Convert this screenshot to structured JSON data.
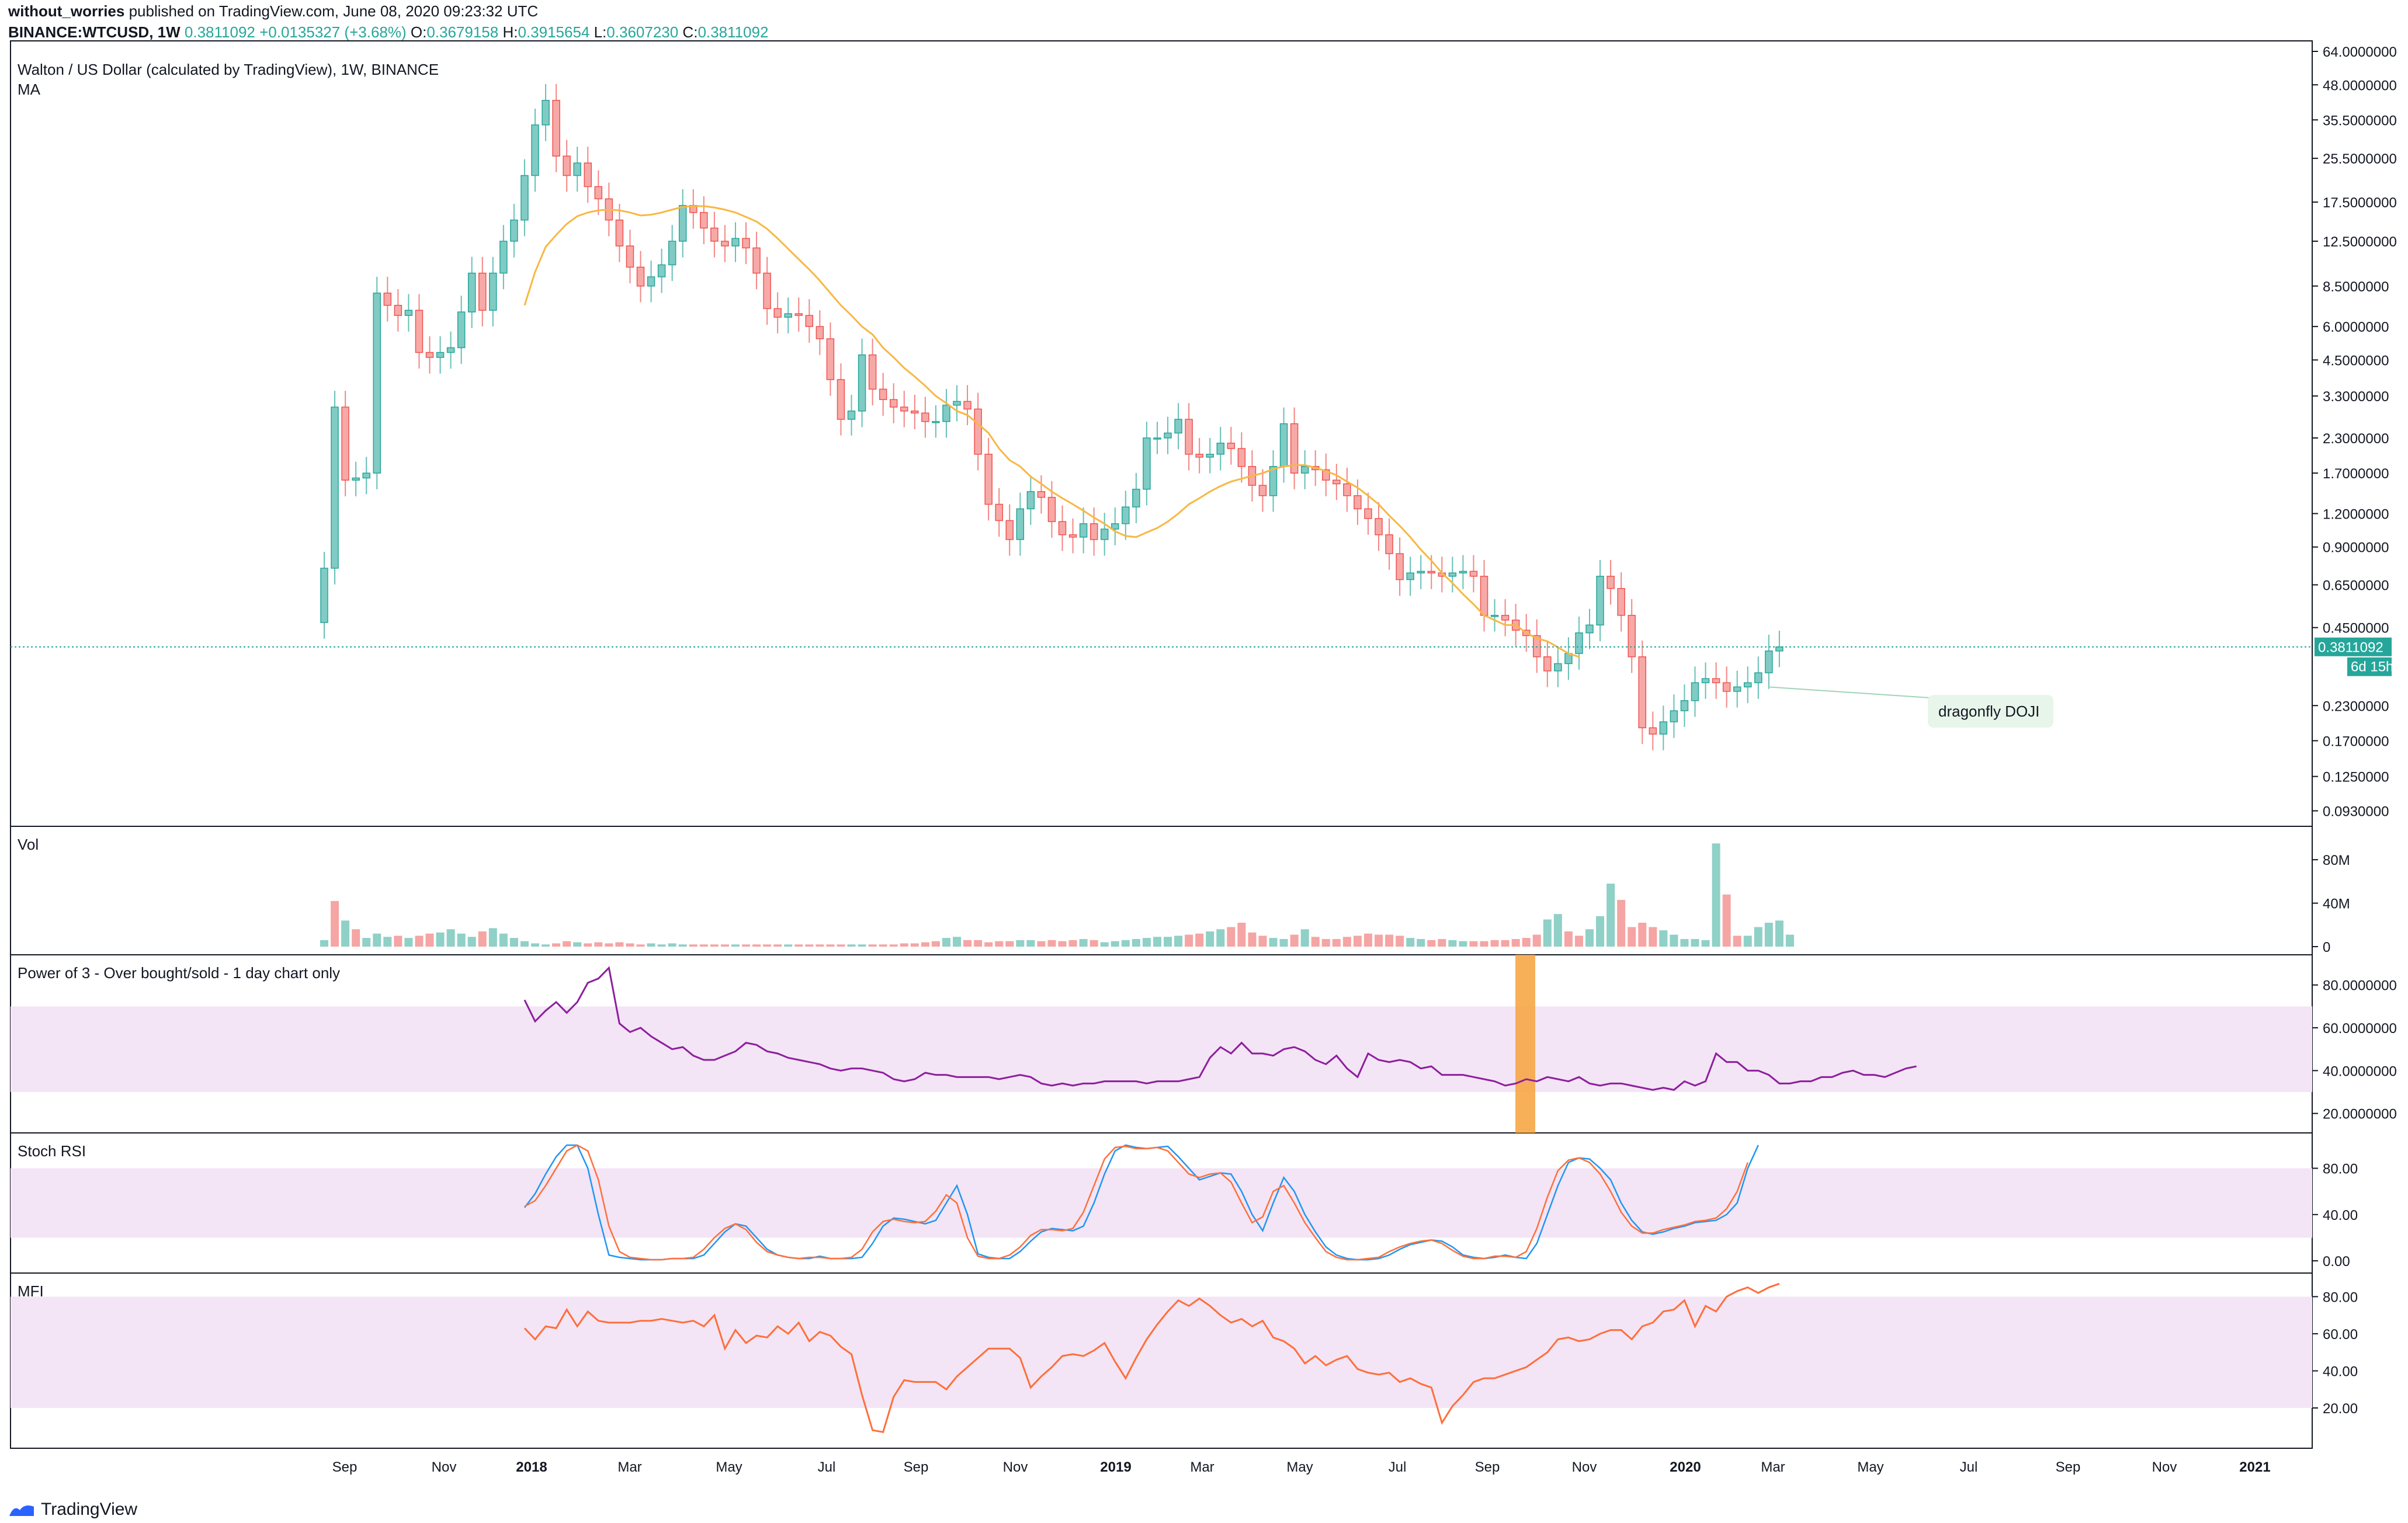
{
  "header": {
    "publisher": "without_worries",
    "published_text": "published on TradingView.com, June 08, 2020 09:23:32 UTC",
    "symbol": "BINANCE:WTCUSD, 1W",
    "last": "0.3811092",
    "change": "+0.0135327 (+3.68%)",
    "ohlc": {
      "O": "0.3679158",
      "H": "0.3915654",
      "L": "0.3607230",
      "C": "0.3811092"
    }
  },
  "brand": "TradingView",
  "colors": {
    "up": "#26a69a",
    "down": "#ef5350",
    "ma": "#f7b844",
    "pow3": "#8e1e9e",
    "stoch_k": "#2196f3",
    "stoch_d": "#ff6f3c",
    "mfi": "#ff6f3c",
    "band": "#f3e5f5",
    "highlight": "#f7a23b"
  },
  "chart_data": [
    {
      "type": "candlestick",
      "title": "Walton / US Dollar (calculated by TradingView), 1W, BINANCE",
      "indicator": "MA",
      "scale": "log",
      "y_ticks": [
        "64.0000000",
        "48.0000000",
        "35.5000000",
        "25.5000000",
        "17.5000000",
        "12.5000000",
        "8.5000000",
        "6.0000000",
        "4.5000000",
        "3.3000000",
        "2.3000000",
        "1.7000000",
        "1.2000000",
        "0.9000000",
        "0.6500000",
        "0.4500000",
        "0.2300000",
        "0.1700000",
        "0.1250000",
        "0.0930000"
      ],
      "last_price_label": "0.3811092",
      "countdown_label": "6d 15h",
      "annotation": "dragonfly DOJI",
      "x_labels": [
        "Sep",
        "Nov",
        "2018",
        "Mar",
        "May",
        "Jul",
        "Sep",
        "Nov",
        "2019",
        "Mar",
        "May",
        "Jul",
        "Sep",
        "Nov",
        "2020",
        "Mar",
        "May",
        "Jul",
        "Sep",
        "Nov",
        "2021"
      ],
      "close": [
        0.75,
        3.0,
        1.6,
        1.63,
        1.7,
        8.0,
        7.2,
        6.6,
        6.9,
        4.8,
        4.6,
        4.8,
        5.0,
        6.8,
        9.5,
        6.9,
        9.5,
        12.5,
        15.0,
        22.0,
        34.0,
        42.0,
        26.0,
        22.0,
        24.5,
        20.0,
        18.0,
        15.0,
        12.0,
        10.0,
        8.5,
        9.2,
        10.2,
        12.5,
        17.0,
        16.0,
        14.0,
        12.5,
        12.0,
        12.8,
        11.8,
        9.5,
        7.0,
        6.5,
        6.7,
        6.6,
        6.0,
        5.4,
        3.8,
        2.7,
        2.9,
        4.7,
        3.5,
        3.2,
        3.0,
        2.9,
        2.85,
        2.65,
        2.65,
        3.05,
        3.15,
        2.95,
        2.0,
        1.3,
        1.13,
        0.96,
        1.25,
        1.45,
        1.38,
        1.12,
        1.0,
        0.98,
        1.1,
        0.96,
        1.05,
        1.1,
        1.27,
        1.48,
        2.3,
        2.3,
        2.4,
        2.7,
        2.0,
        1.95,
        2.0,
        2.2,
        2.1,
        1.8,
        1.53,
        1.4,
        1.8,
        2.6,
        1.7,
        1.8,
        1.75,
        1.6,
        1.55,
        1.4,
        1.25,
        1.15,
        1.0,
        0.85,
        0.68,
        0.72,
        0.73,
        0.72,
        0.7,
        0.72,
        0.73,
        0.7,
        0.5,
        0.5,
        0.48,
        0.44,
        0.42,
        0.35,
        0.31,
        0.33,
        0.36,
        0.43,
        0.46,
        0.7,
        0.63,
        0.5,
        0.35,
        0.19,
        0.18,
        0.2,
        0.22,
        0.24,
        0.28,
        0.29,
        0.28,
        0.26,
        0.27,
        0.28,
        0.305,
        0.368,
        0.3811092
      ],
      "ma_label": "MA",
      "ma": [
        0.0,
        0.0,
        0.0,
        0.0,
        0.0,
        0.0,
        0.0,
        0.0,
        0.0,
        0.0,
        0.0,
        0.0,
        0.0,
        0.0,
        0.0,
        0.0,
        0.0,
        0.0,
        0.0,
        7.2,
        9.6,
        11.9,
        13.2,
        14.5,
        15.5,
        16.0,
        16.3,
        16.4,
        16.3,
        16.0,
        15.6,
        15.7,
        16.0,
        16.4,
        16.8,
        16.9,
        16.9,
        16.7,
        16.4,
        16.0,
        15.4,
        14.8,
        13.9,
        12.8,
        11.7,
        10.7,
        9.8,
        8.9,
        8.0,
        7.2,
        6.6,
        6.0,
        5.6,
        5.0,
        4.6,
        4.2,
        3.9,
        3.6,
        3.3,
        3.1,
        2.9,
        2.8,
        2.6,
        2.4,
        2.1,
        1.9,
        1.8,
        1.65,
        1.55,
        1.45,
        1.37,
        1.3,
        1.23,
        1.16,
        1.1,
        1.03,
        0.99,
        0.98,
        1.02,
        1.06,
        1.12,
        1.2,
        1.3,
        1.37,
        1.45,
        1.52,
        1.58,
        1.62,
        1.66,
        1.7,
        1.76,
        1.8,
        1.82,
        1.82,
        1.78,
        1.73,
        1.67,
        1.58,
        1.5,
        1.4,
        1.3,
        1.18,
        1.08,
        0.98,
        0.88,
        0.8,
        0.72,
        0.66,
        0.6,
        0.55,
        0.5,
        0.48,
        0.46,
        0.46,
        0.43,
        0.41,
        0.4,
        0.38,
        0.36,
        0.35
      ],
      "vol_label": "Vol",
      "vol_ticks": [
        "80M",
        "40M",
        "0"
      ],
      "volume_m": [
        6,
        42,
        24,
        16,
        8,
        12,
        9,
        10,
        8,
        10,
        12,
        13,
        16,
        12,
        9,
        14,
        17,
        12,
        8,
        5,
        3,
        2,
        3,
        5,
        4,
        3,
        4,
        3,
        4,
        3,
        2,
        3,
        2,
        3,
        2,
        2,
        2,
        2,
        2,
        2,
        2,
        2,
        2,
        2,
        2,
        2,
        2,
        2,
        2,
        2,
        2,
        2,
        2,
        2,
        2,
        3,
        3,
        4,
        5,
        8,
        9,
        6,
        6,
        4,
        5,
        5,
        6,
        6,
        5,
        6,
        5,
        6,
        7,
        6,
        4,
        5,
        6,
        7,
        8,
        9,
        9,
        10,
        11,
        12,
        14,
        16,
        18,
        22,
        13,
        10,
        8,
        7,
        11,
        16,
        9,
        7,
        7,
        9,
        10,
        12,
        11,
        11,
        10,
        8,
        7,
        6,
        7,
        6,
        5,
        5,
        5,
        6,
        6,
        7,
        8,
        11,
        25,
        30,
        14,
        10,
        16,
        28,
        58,
        43,
        18,
        22,
        18,
        15,
        11,
        7,
        7,
        6,
        95,
        48,
        10,
        10,
        18,
        22,
        24,
        11
      ],
      "volume_up": [
        1,
        0,
        1,
        0,
        1,
        1,
        1,
        0,
        1,
        0,
        0,
        1,
        1,
        1,
        1,
        0,
        1,
        1,
        1,
        1,
        1,
        1,
        0,
        0,
        1,
        0,
        0,
        0,
        0,
        0,
        0,
        1,
        1,
        1,
        1,
        0,
        0,
        0,
        0,
        1,
        0,
        0,
        0,
        0,
        1,
        0,
        0,
        0,
        0,
        0,
        1,
        1,
        0,
        0,
        0,
        0,
        0,
        0,
        0,
        1,
        1,
        0,
        0,
        0,
        0,
        0,
        1,
        1,
        0,
        0,
        0,
        0,
        1,
        0,
        1,
        1,
        1,
        1,
        1,
        1,
        1,
        1,
        0,
        0,
        1,
        1,
        0,
        0,
        0,
        0,
        1,
        1,
        0,
        1,
        0,
        0,
        0,
        0,
        0,
        0,
        0,
        0,
        0,
        1,
        1,
        0,
        0,
        1,
        1,
        0,
        0,
        0,
        0,
        0,
        0,
        0,
        1,
        1,
        0,
        0,
        1,
        1,
        1,
        0,
        0,
        0,
        0,
        1,
        1,
        1,
        1,
        1,
        1,
        0,
        0,
        1,
        1,
        1,
        1,
        1
      ]
    },
    {
      "type": "line",
      "title": "Power of 3 - Over bought/sold - 1 day chart only",
      "y_ticks": [
        "80.0000000",
        "60.0000000",
        "40.0000000",
        "20.0000000"
      ],
      "band": [
        30,
        70
      ],
      "ylim": [
        15,
        90
      ],
      "start_index": 19,
      "values": [
        73,
        63,
        68,
        72,
        67,
        72,
        81,
        83,
        88,
        62,
        58,
        60,
        56,
        53,
        50,
        51,
        47,
        45,
        45,
        47,
        49,
        53,
        52,
        49,
        48,
        46,
        45,
        44,
        43,
        41,
        40,
        41,
        41,
        40,
        39,
        36,
        35,
        36,
        39,
        38,
        38,
        37,
        37,
        37,
        37,
        36,
        37,
        38,
        37,
        34,
        33,
        34,
        33,
        34,
        34,
        35,
        35,
        35,
        35,
        34,
        35,
        35,
        35,
        36,
        37,
        46,
        51,
        48,
        53,
        48,
        48,
        47,
        50,
        51,
        49,
        45,
        43,
        47,
        41,
        37,
        48,
        45,
        44,
        45,
        44,
        41,
        42,
        38,
        38,
        38,
        37,
        36,
        35,
        33,
        34,
        36,
        35,
        37,
        36,
        35,
        37,
        34,
        33,
        34,
        34,
        33,
        32,
        31,
        32,
        31,
        35,
        33,
        35,
        48,
        44,
        44,
        40,
        40,
        38,
        34,
        34,
        35,
        35,
        37,
        37,
        39,
        40,
        38,
        38,
        37,
        39,
        41,
        42
      ]
    },
    {
      "type": "line",
      "title": "Stoch RSI",
      "y_ticks": [
        "80.00",
        "40.00",
        "0.00"
      ],
      "band": [
        20,
        80
      ],
      "ylim": [
        -3,
        103
      ],
      "start_index": 19,
      "series": [
        {
          "values": [
            46,
            58,
            75,
            90,
            100,
            100,
            80,
            40,
            5,
            3,
            2,
            1,
            1,
            1,
            2,
            2,
            2,
            5,
            15,
            25,
            32,
            30,
            20,
            10,
            5,
            3,
            2,
            2,
            4,
            2,
            2,
            2,
            3,
            15,
            30,
            37,
            36,
            34,
            32,
            35,
            50,
            65,
            40,
            6,
            3,
            2,
            2,
            8,
            17,
            25,
            28,
            27,
            26,
            30,
            50,
            75,
            95,
            100,
            98,
            97,
            98,
            99,
            90,
            80,
            70,
            73,
            76,
            75,
            60,
            40,
            26,
            50,
            72,
            60,
            40,
            25,
            12,
            5,
            2,
            1,
            1,
            2,
            5,
            10,
            14,
            16,
            18,
            17,
            12,
            5,
            3,
            2,
            3,
            5,
            3,
            2,
            15,
            40,
            65,
            85,
            89,
            88,
            80,
            70,
            50,
            35,
            25,
            23,
            25,
            28,
            30,
            33,
            34,
            35,
            40,
            50,
            80,
            100
          ]
        },
        {
          "values": [
            47,
            52,
            65,
            80,
            95,
            100,
            95,
            70,
            30,
            8,
            3,
            2,
            1,
            1,
            2,
            2,
            3,
            10,
            20,
            28,
            32,
            27,
            16,
            8,
            5,
            3,
            2,
            3,
            3,
            2,
            2,
            3,
            10,
            25,
            34,
            36,
            34,
            33,
            34,
            43,
            57,
            50,
            20,
            4,
            2,
            2,
            5,
            12,
            22,
            27,
            27,
            26,
            28,
            42,
            65,
            88,
            98,
            99,
            97,
            97,
            98,
            95,
            85,
            75,
            72,
            75,
            76,
            68,
            50,
            33,
            38,
            60,
            65,
            50,
            33,
            20,
            8,
            3,
            1,
            1,
            2,
            3,
            8,
            12,
            15,
            17,
            18,
            15,
            9,
            4,
            2,
            2,
            4,
            4,
            3,
            8,
            28,
            55,
            78,
            87,
            89,
            85,
            75,
            60,
            42,
            30,
            24,
            24,
            27,
            29,
            31,
            34,
            35,
            37,
            45,
            60,
            85
          ]
        }
      ]
    },
    {
      "type": "line",
      "title": "MFI",
      "y_ticks": [
        "80.00",
        "60.00",
        "40.00",
        "20.00"
      ],
      "band": [
        20,
        80
      ],
      "ylim": [
        3,
        88
      ],
      "start_index": 19,
      "values": [
        63,
        57,
        64,
        63,
        73,
        64,
        72,
        67,
        66,
        66,
        66,
        67,
        67,
        68,
        67,
        66,
        67,
        64,
        70,
        52,
        62,
        55,
        59,
        58,
        64,
        60,
        66,
        56,
        61,
        59,
        53,
        49,
        27,
        8,
        7,
        26,
        35,
        34,
        34,
        34,
        30,
        37,
        42,
        47,
        52,
        52,
        52,
        47,
        31,
        37,
        42,
        48,
        49,
        48,
        51,
        55,
        45,
        36,
        47,
        57,
        65,
        72,
        78,
        75,
        79,
        75,
        70,
        66,
        68,
        64,
        67,
        58,
        56,
        52,
        44,
        48,
        43,
        46,
        48,
        41,
        39,
        38,
        39,
        34,
        36,
        33,
        31,
        12,
        21,
        27,
        34,
        36,
        36,
        38,
        40,
        42,
        46,
        50,
        57,
        58,
        56,
        57,
        60,
        62,
        62,
        57,
        64,
        66,
        72,
        73,
        78,
        64,
        75,
        72,
        80,
        83,
        85,
        82,
        85,
        87
      ]
    }
  ]
}
